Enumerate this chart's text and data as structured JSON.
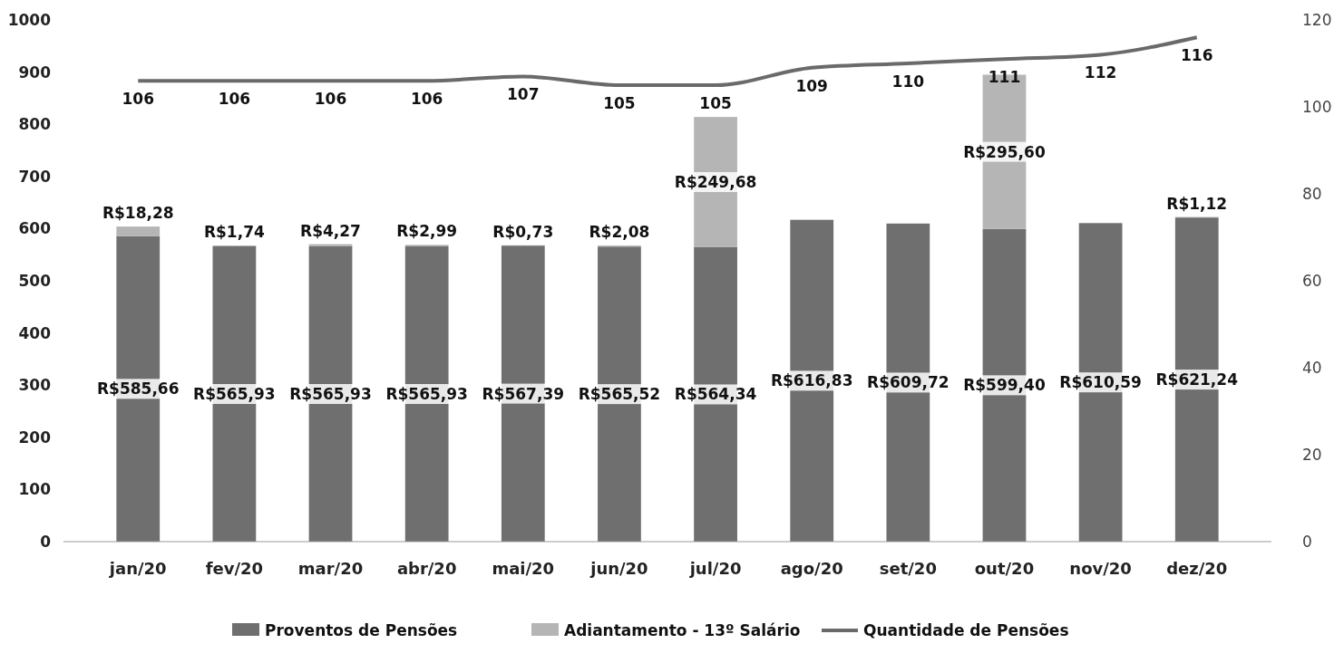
{
  "chart_data": {
    "type": "bar",
    "stacked": true,
    "categories": [
      "jan/20",
      "fev/20",
      "mar/20",
      "abr/20",
      "mai/20",
      "jun/20",
      "jul/20",
      "ago/20",
      "set/20",
      "out/20",
      "nov/20",
      "dez/20"
    ],
    "series": [
      {
        "name": "Proventos de Pensões",
        "color": "#6f6f6f",
        "values": [
          585.66,
          565.93,
          565.93,
          565.93,
          567.39,
          565.52,
          564.34,
          616.83,
          609.72,
          599.4,
          610.59,
          621.24
        ],
        "value_labels": [
          "R$585,66",
          "R$565,93",
          "R$565,93",
          "R$565,93",
          "R$567,39",
          "R$565,52",
          "R$564,34",
          "R$616,83",
          "R$609,72",
          "R$599,40",
          "R$610,59",
          "R$621,24"
        ]
      },
      {
        "name": "Adiantamento - 13º Salário",
        "color": "#b5b5b5",
        "values": [
          18.28,
          1.74,
          4.27,
          2.99,
          0.73,
          2.08,
          249.68,
          null,
          null,
          295.6,
          null,
          1.12
        ],
        "value_labels": [
          "R$18,28",
          "R$1,74",
          "R$4,27",
          "R$2,99",
          "R$0,73",
          "R$2,08",
          "R$249,68",
          null,
          null,
          "R$295,60",
          null,
          "R$1,12"
        ]
      },
      {
        "name": "Quantidade de Pensões",
        "type": "line",
        "axis": "y2",
        "color": "#6a6a6a",
        "values": [
          106,
          106,
          106,
          106,
          107,
          105,
          105,
          109,
          110,
          111,
          112,
          116
        ],
        "value_labels": [
          "106",
          "106",
          "106",
          "106",
          "107",
          "105",
          "105",
          "109",
          "110",
          "111",
          "112",
          "116"
        ]
      }
    ],
    "ylim": [
      0,
      1000
    ],
    "yticks": [
      0,
      100,
      200,
      300,
      400,
      500,
      600,
      700,
      800,
      900,
      1000
    ],
    "y2lim": [
      0,
      120
    ],
    "y2ticks": [
      0,
      20,
      40,
      60,
      80,
      100,
      120
    ],
    "legend": "bottom",
    "marker": "none",
    "line_style": "solid"
  }
}
